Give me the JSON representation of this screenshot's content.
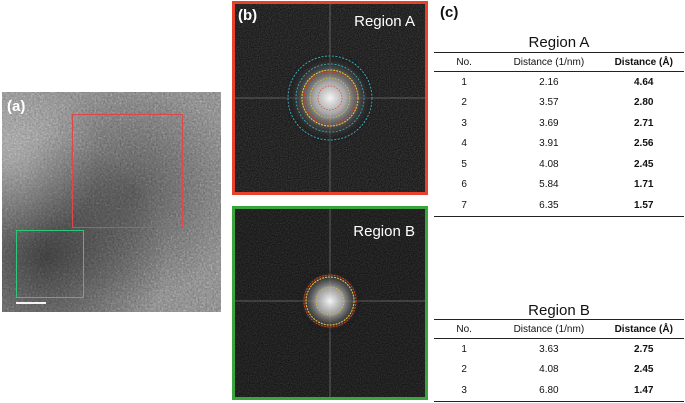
{
  "panels": {
    "a": {
      "label": "(a)"
    },
    "b": {
      "label": "(b)",
      "region_a_title": "Region A",
      "region_b_title": "Region B"
    },
    "c": {
      "label": "(c)"
    }
  },
  "tables": {
    "region_a": {
      "title": "Region A",
      "headers": [
        "No.",
        "Distance (1/nm)",
        "Distance (Å)"
      ],
      "rows": [
        [
          "1",
          "2.16",
          "4.64"
        ],
        [
          "2",
          "3.57",
          "2.80"
        ],
        [
          "3",
          "3.69",
          "2.71"
        ],
        [
          "4",
          "3.91",
          "2.56"
        ],
        [
          "5",
          "4.08",
          "2.45"
        ],
        [
          "6",
          "5.84",
          "1.71"
        ],
        [
          "7",
          "6.35",
          "1.57"
        ]
      ]
    },
    "region_b": {
      "title": "Region B",
      "headers": [
        "No.",
        "Distance (1/nm)",
        "Distance (Å)"
      ],
      "rows": [
        [
          "1",
          "3.63",
          "2.75"
        ],
        [
          "2",
          "4.08",
          "2.45"
        ],
        [
          "3",
          "6.80",
          "1.47"
        ]
      ]
    }
  },
  "colors": {
    "region_a_frame": "#e8412c",
    "region_b_frame": "#3aa53a",
    "roi_a": "#e04848",
    "roi_b": "#2cc878",
    "ring_cyan": "#39b6c8",
    "ring_yellow": "#e0c83a",
    "ring_red": "#d8402c"
  }
}
